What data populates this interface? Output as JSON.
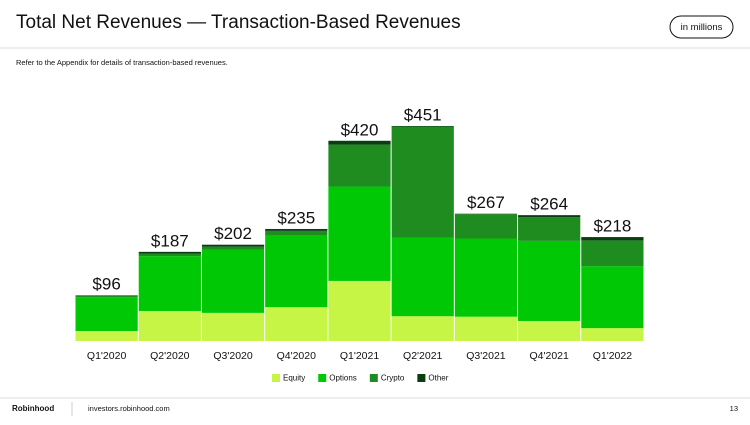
{
  "chart_data": {
    "type": "stacked_bar",
    "title": "Total Net Revenues — Transaction-Based Revenues",
    "badge": "in millions",
    "subtitle": "Refer to the Appendix for details of transaction-based revenues.",
    "categories": [
      "Q1'2020",
      "Q2'2020",
      "Q3'2020",
      "Q4'2020",
      "Q1'2021",
      "Q2'2021",
      "Q3'2021",
      "Q4'2021",
      "Q1'2022"
    ],
    "series": [
      {
        "name": "Equity",
        "color": "#c6f546",
        "values": [
          21,
          63,
          59,
          71,
          126,
          52,
          51,
          42,
          27
        ]
      },
      {
        "name": "Options",
        "color": "#00c805",
        "values": [
          71,
          115,
          133,
          150,
          198,
          165,
          164,
          168,
          130
        ]
      },
      {
        "name": "Crypto",
        "color": "#1f8c1f",
        "values": [
          4,
          5,
          6,
          10,
          88,
          233,
          51,
          50,
          54
        ]
      },
      {
        "name": "Other",
        "color": "#0a3d12",
        "values": [
          0,
          4,
          4,
          4,
          8,
          1,
          1,
          4,
          7
        ]
      }
    ],
    "totals": [
      96,
      187,
      202,
      235,
      420,
      451,
      267,
      264,
      218
    ],
    "total_labels": [
      "$96",
      "$187",
      "$202",
      "$235",
      "$420",
      "$451",
      "$267",
      "$264",
      "$218"
    ]
  },
  "footer": {
    "brand": "Robinhood",
    "url": "investors.robinhood.com",
    "page": "13"
  }
}
